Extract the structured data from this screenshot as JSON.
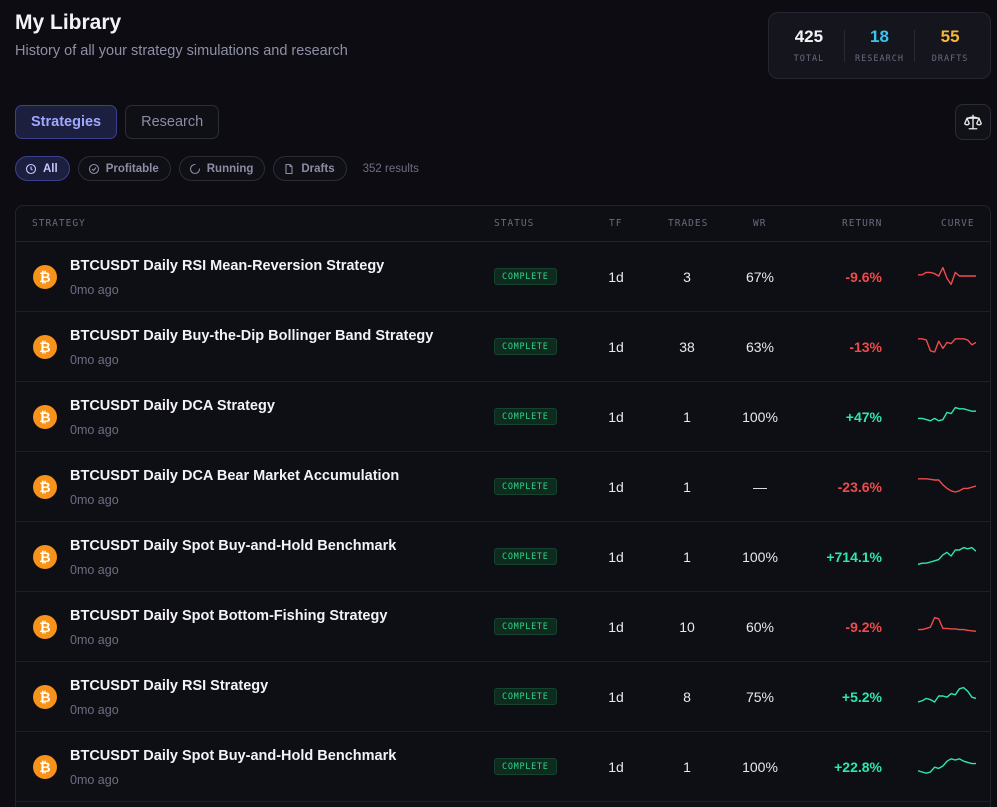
{
  "header": {
    "title": "My Library",
    "subtitle": "History of all your strategy simulations and research"
  },
  "stats": [
    {
      "value": "425",
      "label": "TOTAL",
      "color": "#f3f3f7"
    },
    {
      "value": "18",
      "label": "RESEARCH",
      "color": "#38c6f0"
    },
    {
      "value": "55",
      "label": "DRAFTS",
      "color": "#f5b638"
    }
  ],
  "tabs": [
    {
      "label": "Strategies",
      "active": true
    },
    {
      "label": "Research",
      "active": false
    }
  ],
  "filters": {
    "chips": [
      {
        "label": "All",
        "icon": "clock-icon",
        "active": true
      },
      {
        "label": "Profitable",
        "icon": "check-circle-icon",
        "active": false
      },
      {
        "label": "Running",
        "icon": "spinner-icon",
        "active": false
      },
      {
        "label": "Drafts",
        "icon": "file-icon",
        "active": false
      }
    ],
    "results": "352 results"
  },
  "table": {
    "columns": {
      "strategy": "STRATEGY",
      "status": "STATUS",
      "tf": "TF",
      "trades": "TRADES",
      "wr": "WR",
      "return": "RETURN",
      "curve": "CURVE"
    },
    "rows": [
      {
        "name": "BTCUSDT Daily RSI Mean-Reversion Strategy",
        "age": "0mo ago",
        "status": "COMPLETE",
        "tf": "1d",
        "trades": "3",
        "wr": "67%",
        "ret": "-9.6%",
        "positive": false,
        "curve": [
          0.45,
          0.45,
          0.35,
          0.35,
          0.4,
          0.5,
          0.15,
          0.6,
          0.85,
          0.35,
          0.5,
          0.5,
          0.5,
          0.5,
          0.5
        ]
      },
      {
        "name": "BTCUSDT Daily Buy-the-Dip Bollinger Band Strategy",
        "age": "0mo ago",
        "status": "COMPLETE",
        "tf": "1d",
        "trades": "38",
        "wr": "63%",
        "ret": "-13%",
        "positive": false,
        "curve": [
          0.2,
          0.2,
          0.25,
          0.7,
          0.75,
          0.3,
          0.6,
          0.35,
          0.4,
          0.2,
          0.2,
          0.2,
          0.25,
          0.45,
          0.35
        ]
      },
      {
        "name": "BTCUSDT Daily DCA Strategy",
        "age": "0mo ago",
        "status": "COMPLETE",
        "tf": "1d",
        "trades": "1",
        "wr": "100%",
        "ret": "+47%",
        "positive": true,
        "curve": [
          0.6,
          0.6,
          0.65,
          0.7,
          0.6,
          0.7,
          0.65,
          0.35,
          0.4,
          0.15,
          0.2,
          0.2,
          0.25,
          0.3,
          0.3
        ]
      },
      {
        "name": "BTCUSDT Daily DCA Bear Market Accumulation",
        "age": "0mo ago",
        "status": "COMPLETE",
        "tf": "1d",
        "trades": "1",
        "wr": "—",
        "ret": "-23.6%",
        "positive": false,
        "curve": [
          0.2,
          0.2,
          0.2,
          0.22,
          0.25,
          0.25,
          0.45,
          0.6,
          0.7,
          0.75,
          0.7,
          0.6,
          0.6,
          0.55,
          0.5
        ]
      },
      {
        "name": "BTCUSDT Daily Spot Buy-and-Hold Benchmark",
        "age": "0mo ago",
        "status": "COMPLETE",
        "tf": "1d",
        "trades": "1",
        "wr": "100%",
        "ret": "+714.1%",
        "positive": true,
        "curve": [
          0.85,
          0.8,
          0.8,
          0.75,
          0.7,
          0.65,
          0.45,
          0.35,
          0.5,
          0.25,
          0.25,
          0.15,
          0.2,
          0.15,
          0.3
        ]
      },
      {
        "name": "BTCUSDT Daily Spot Bottom-Fishing Strategy",
        "age": "0mo ago",
        "status": "COMPLETE",
        "tf": "1d",
        "trades": "10",
        "wr": "60%",
        "ret": "-9.2%",
        "positive": false,
        "curve": [
          0.65,
          0.65,
          0.6,
          0.55,
          0.15,
          0.2,
          0.6,
          0.6,
          0.62,
          0.62,
          0.65,
          0.65,
          0.68,
          0.7,
          0.72
        ]
      },
      {
        "name": "BTCUSDT Daily RSI Strategy",
        "age": "0mo ago",
        "status": "COMPLETE",
        "tf": "1d",
        "trades": "8",
        "wr": "75%",
        "ret": "+5.2%",
        "positive": true,
        "curve": [
          0.75,
          0.7,
          0.6,
          0.65,
          0.75,
          0.5,
          0.5,
          0.55,
          0.4,
          0.45,
          0.2,
          0.15,
          0.3,
          0.55,
          0.6
        ]
      },
      {
        "name": "BTCUSDT Daily Spot Buy-and-Hold Benchmark",
        "age": "0mo ago",
        "status": "COMPLETE",
        "tf": "1d",
        "trades": "1",
        "wr": "100%",
        "ret": "+22.8%",
        "positive": true,
        "curve": [
          0.7,
          0.75,
          0.8,
          0.75,
          0.55,
          0.6,
          0.5,
          0.3,
          0.2,
          0.25,
          0.2,
          0.3,
          0.35,
          0.4,
          0.4
        ]
      }
    ]
  }
}
